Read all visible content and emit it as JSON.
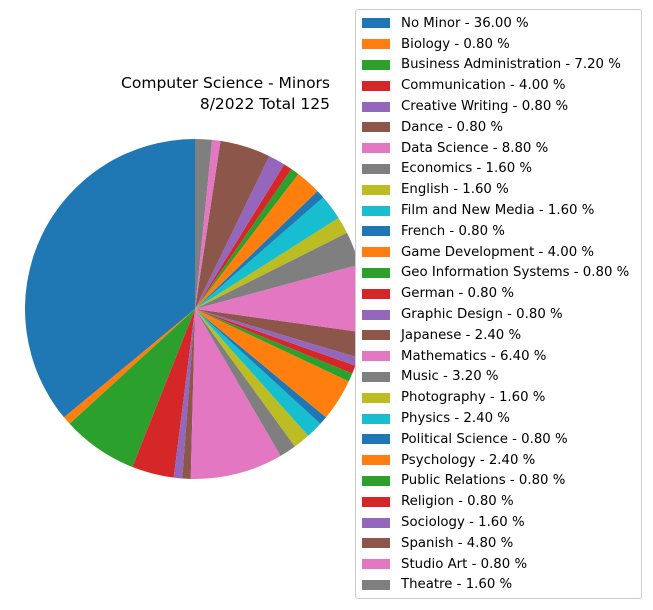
{
  "chart_data": {
    "type": "pie",
    "title": "Computer Science - Minors",
    "subtitle": "8/2022 Total 125",
    "total": 125,
    "start_angle_deg": 90,
    "direction": "counterclockwise",
    "legend_placement": "right",
    "slices": [
      {
        "label": "No Minor",
        "percent": 36.0,
        "legend_text": "No Minor - 36.00 %",
        "color": "#1f77b4"
      },
      {
        "label": "Biology",
        "percent": 0.8,
        "legend_text": "Biology - 0.80 %",
        "color": "#ff7f0e"
      },
      {
        "label": "Business Administration",
        "percent": 7.2,
        "legend_text": "Business Administration - 7.20 %",
        "color": "#2ca02c"
      },
      {
        "label": "Communication",
        "percent": 4.0,
        "legend_text": "Communication - 4.00 %",
        "color": "#d62728"
      },
      {
        "label": "Creative Writing",
        "percent": 0.8,
        "legend_text": "Creative Writing - 0.80 %",
        "color": "#9467bd"
      },
      {
        "label": "Dance",
        "percent": 0.8,
        "legend_text": "Dance - 0.80 %",
        "color": "#8c564b"
      },
      {
        "label": "Data Science",
        "percent": 8.8,
        "legend_text": "Data Science - 8.80 %",
        "color": "#e377c2"
      },
      {
        "label": "Economics",
        "percent": 1.6,
        "legend_text": "Economics - 1.60 %",
        "color": "#7f7f7f"
      },
      {
        "label": "English",
        "percent": 1.6,
        "legend_text": "English - 1.60 %",
        "color": "#bcbd22"
      },
      {
        "label": "Film and New Media",
        "percent": 1.6,
        "legend_text": "Film and New Media - 1.60 %",
        "color": "#17becf"
      },
      {
        "label": "French",
        "percent": 0.8,
        "legend_text": "French - 0.80 %",
        "color": "#1f77b4"
      },
      {
        "label": "Game Development",
        "percent": 4.0,
        "legend_text": "Game Development - 4.00 %",
        "color": "#ff7f0e"
      },
      {
        "label": "Geo Information Systems",
        "percent": 0.8,
        "legend_text": "Geo Information Systems - 0.80 %",
        "color": "#2ca02c"
      },
      {
        "label": "German",
        "percent": 0.8,
        "legend_text": "German - 0.80 %",
        "color": "#d62728"
      },
      {
        "label": "Graphic Design",
        "percent": 0.8,
        "legend_text": "Graphic Design - 0.80 %",
        "color": "#9467bd"
      },
      {
        "label": "Japanese",
        "percent": 2.4,
        "legend_text": "Japanese - 2.40 %",
        "color": "#8c564b"
      },
      {
        "label": "Mathematics",
        "percent": 6.4,
        "legend_text": "Mathematics - 6.40 %",
        "color": "#e377c2"
      },
      {
        "label": "Music",
        "percent": 3.2,
        "legend_text": "Music - 3.20 %",
        "color": "#7f7f7f"
      },
      {
        "label": "Photography",
        "percent": 1.6,
        "legend_text": "Photography - 1.60 %",
        "color": "#bcbd22"
      },
      {
        "label": "Physics",
        "percent": 2.4,
        "legend_text": "Physics - 2.40 %",
        "color": "#17becf"
      },
      {
        "label": "Political Science",
        "percent": 0.8,
        "legend_text": "Political Science - 0.80 %",
        "color": "#1f77b4"
      },
      {
        "label": "Psychology",
        "percent": 2.4,
        "legend_text": "Psychology - 2.40 %",
        "color": "#ff7f0e"
      },
      {
        "label": "Public Relations",
        "percent": 0.8,
        "legend_text": "Public Relations - 0.80 %",
        "color": "#2ca02c"
      },
      {
        "label": "Religion",
        "percent": 0.8,
        "legend_text": "Religion - 0.80 %",
        "color": "#d62728"
      },
      {
        "label": "Sociology",
        "percent": 1.6,
        "legend_text": "Sociology - 1.60 %",
        "color": "#9467bd"
      },
      {
        "label": "Spanish",
        "percent": 4.8,
        "legend_text": "Spanish - 4.80 %",
        "color": "#8c564b"
      },
      {
        "label": "Studio Art",
        "percent": 0.8,
        "legend_text": "Studio Art - 0.80 %",
        "color": "#e377c2"
      },
      {
        "label": "Theatre",
        "percent": 1.6,
        "legend_text": "Theatre - 1.60 %",
        "color": "#7f7f7f"
      }
    ]
  }
}
